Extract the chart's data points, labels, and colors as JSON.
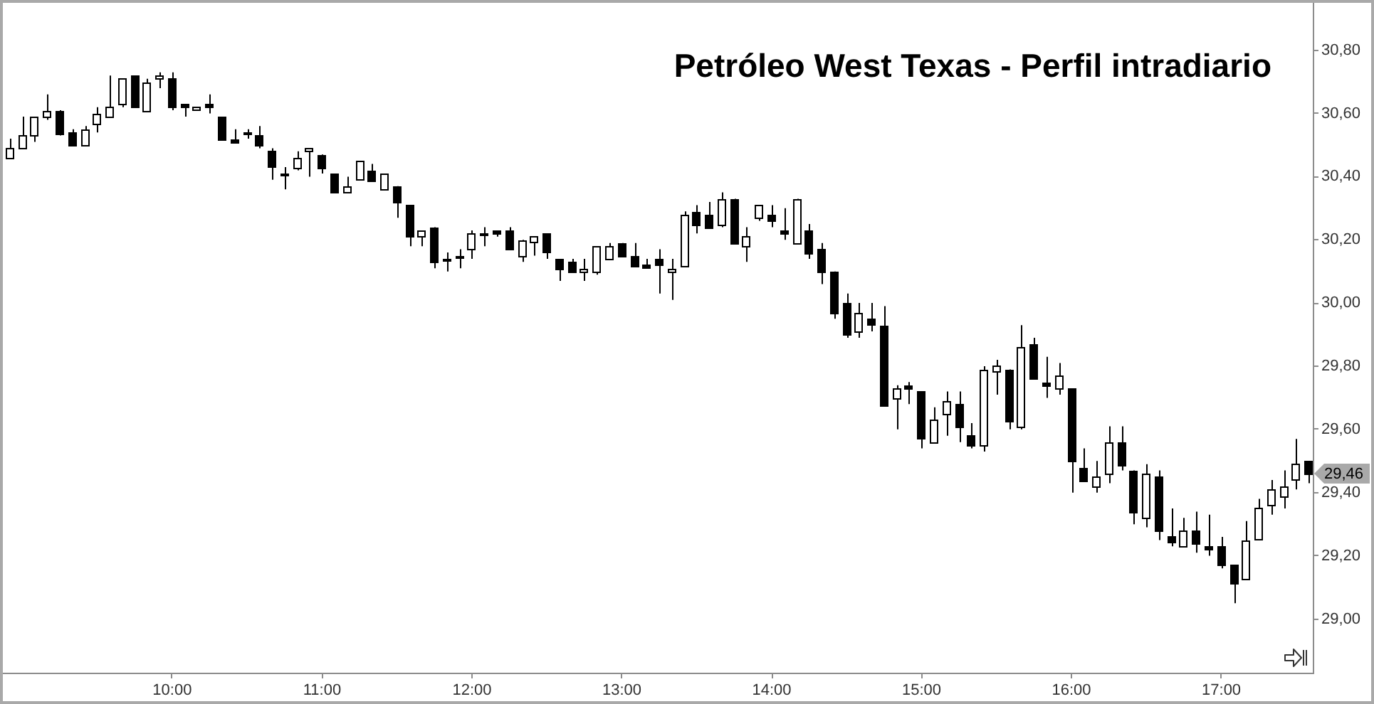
{
  "chart_data": {
    "type": "candlestick",
    "title": "Petróleo West Texas - Perfil intradiario",
    "color": "#000000",
    "x": [
      8.9167,
      9,
      9.0833,
      9.1667,
      9.25,
      9.3333,
      9.4167,
      9.5,
      9.5833,
      9.6667,
      9.75,
      9.8333,
      9.9167,
      10,
      10.0833,
      10.1667,
      10.25,
      10.3333,
      10.4167,
      10.5,
      10.5833,
      10.6667,
      10.75,
      10.8333,
      10.9167,
      11,
      11.0833,
      11.1667,
      11.25,
      11.3333,
      11.4167,
      11.5,
      11.5833,
      11.6667,
      11.75,
      11.8333,
      11.9167,
      12,
      12.0833,
      12.1667,
      12.25,
      12.3333,
      12.4167,
      12.5,
      12.5833,
      12.6667,
      12.75,
      12.8333,
      12.9167,
      13,
      13.0833,
      13.1667,
      13.25,
      13.3333,
      13.4167,
      13.5,
      13.5833,
      13.6667,
      13.75,
      13.8333,
      13.9167,
      14,
      14.0833,
      14.1667,
      14.25,
      14.3333,
      14.4167,
      14.5,
      14.5833,
      14.6667,
      14.75,
      14.8333,
      14.9167,
      15,
      15.0833,
      15.1667,
      15.25,
      15.3333,
      15.4167,
      15.5,
      15.5833,
      15.6667,
      15.75,
      15.8333,
      15.9167,
      16,
      16.0833,
      16.1667,
      16.25,
      16.3333,
      16.4167,
      16.5,
      16.5833,
      16.6667,
      16.75,
      16.8333,
      16.9167,
      17,
      17.0833,
      17.1667,
      17.25,
      17.3333,
      17.4167,
      17.5,
      17.5833
    ],
    "ohlc": [
      [
        30.46,
        30.52,
        30.46,
        30.49
      ],
      [
        30.49,
        30.59,
        30.49,
        30.53
      ],
      [
        30.53,
        30.59,
        30.51,
        30.59
      ],
      [
        30.59,
        30.66,
        30.58,
        30.61
      ],
      [
        30.61,
        30.61,
        30.53,
        30.54
      ],
      [
        30.54,
        30.55,
        30.5,
        30.5
      ],
      [
        30.5,
        30.56,
        30.5,
        30.55
      ],
      [
        30.57,
        30.62,
        30.54,
        30.6
      ],
      [
        30.59,
        30.72,
        30.59,
        30.62
      ],
      [
        30.63,
        30.71,
        30.62,
        30.71
      ],
      [
        30.72,
        30.72,
        30.62,
        30.62
      ],
      [
        30.61,
        30.71,
        30.61,
        30.7
      ],
      [
        30.71,
        30.73,
        30.68,
        30.72
      ],
      [
        30.71,
        30.73,
        30.61,
        30.62
      ],
      [
        30.63,
        30.63,
        30.59,
        30.62
      ],
      [
        30.61,
        30.62,
        30.61,
        30.62
      ],
      [
        30.63,
        30.66,
        30.6,
        30.62
      ],
      [
        30.59,
        30.59,
        30.52,
        30.52
      ],
      [
        30.52,
        30.55,
        30.51,
        30.51
      ],
      [
        30.54,
        30.55,
        30.52,
        30.54
      ],
      [
        30.53,
        30.56,
        30.49,
        30.5
      ],
      [
        30.48,
        30.49,
        30.39,
        30.43
      ],
      [
        30.41,
        30.43,
        30.36,
        30.41
      ],
      [
        30.43,
        30.48,
        30.42,
        30.46
      ],
      [
        30.48,
        30.49,
        30.4,
        30.49
      ],
      [
        30.47,
        30.47,
        30.41,
        30.43
      ],
      [
        30.41,
        30.41,
        30.35,
        30.35
      ],
      [
        30.35,
        30.4,
        30.35,
        30.37
      ],
      [
        30.39,
        30.45,
        30.39,
        30.45
      ],
      [
        30.42,
        30.44,
        30.39,
        30.39
      ],
      [
        30.36,
        30.41,
        30.36,
        30.41
      ],
      [
        30.37,
        30.37,
        30.27,
        30.32
      ],
      [
        30.31,
        30.31,
        30.18,
        30.21
      ],
      [
        30.21,
        30.23,
        30.18,
        30.23
      ],
      [
        30.24,
        30.24,
        30.11,
        30.13
      ],
      [
        30.14,
        30.16,
        30.1,
        30.14
      ],
      [
        30.15,
        30.17,
        30.11,
        30.15
      ],
      [
        30.17,
        30.23,
        30.14,
        30.22
      ],
      [
        30.22,
        30.24,
        30.18,
        30.22
      ],
      [
        30.23,
        30.23,
        30.21,
        30.22
      ],
      [
        30.23,
        30.24,
        30.17,
        30.17
      ],
      [
        30.15,
        30.2,
        30.13,
        30.2
      ],
      [
        30.19,
        30.21,
        30.15,
        30.21
      ],
      [
        30.22,
        30.22,
        30.14,
        30.16
      ],
      [
        30.14,
        30.14,
        30.07,
        30.11
      ],
      [
        30.13,
        30.14,
        30.1,
        30.1
      ],
      [
        30.1,
        30.14,
        30.07,
        30.11
      ],
      [
        30.1,
        30.18,
        30.09,
        30.18
      ],
      [
        30.14,
        30.19,
        30.14,
        30.18
      ],
      [
        30.19,
        30.19,
        30.15,
        30.15
      ],
      [
        30.15,
        30.19,
        30.12,
        30.12
      ],
      [
        30.12,
        30.14,
        30.11,
        30.11
      ],
      [
        30.14,
        30.17,
        30.03,
        30.12
      ],
      [
        30.1,
        30.14,
        30.01,
        30.11
      ],
      [
        30.12,
        30.29,
        30.12,
        30.28
      ],
      [
        30.29,
        30.31,
        30.22,
        30.25
      ],
      [
        30.28,
        30.32,
        30.24,
        30.24
      ],
      [
        30.25,
        30.35,
        30.24,
        30.33
      ],
      [
        30.33,
        30.33,
        30.19,
        30.19
      ],
      [
        30.18,
        30.24,
        30.13,
        30.21
      ],
      [
        30.27,
        30.31,
        30.26,
        30.31
      ],
      [
        30.28,
        30.31,
        30.24,
        30.26
      ],
      [
        30.23,
        30.3,
        30.2,
        30.22
      ],
      [
        30.19,
        30.33,
        30.19,
        30.33
      ],
      [
        30.23,
        30.25,
        30.14,
        30.16
      ],
      [
        30.17,
        30.19,
        30.06,
        30.1
      ],
      [
        30.1,
        30.1,
        29.95,
        29.97
      ],
      [
        30.0,
        30.03,
        29.89,
        29.9
      ],
      [
        29.91,
        30.0,
        29.89,
        29.97
      ],
      [
        29.95,
        30.0,
        29.91,
        29.93
      ],
      [
        29.93,
        29.99,
        29.68,
        29.68
      ],
      [
        29.7,
        29.74,
        29.6,
        29.73
      ],
      [
        29.74,
        29.75,
        29.68,
        29.73
      ],
      [
        29.72,
        29.72,
        29.54,
        29.57
      ],
      [
        29.56,
        29.67,
        29.56,
        29.63
      ],
      [
        29.65,
        29.72,
        29.58,
        29.69
      ],
      [
        29.68,
        29.72,
        29.56,
        29.61
      ],
      [
        29.58,
        29.62,
        29.54,
        29.55
      ],
      [
        29.55,
        29.8,
        29.53,
        29.79
      ],
      [
        29.78,
        29.82,
        29.71,
        29.8
      ],
      [
        29.79,
        29.79,
        29.6,
        29.63
      ],
      [
        29.61,
        29.93,
        29.6,
        29.86
      ],
      [
        29.87,
        29.89,
        29.76,
        29.76
      ],
      [
        29.75,
        29.83,
        29.7,
        29.74
      ],
      [
        29.73,
        29.81,
        29.71,
        29.77
      ],
      [
        29.73,
        29.73,
        29.4,
        29.5
      ],
      [
        29.48,
        29.54,
        29.44,
        29.44
      ],
      [
        29.42,
        29.5,
        29.4,
        29.45
      ],
      [
        29.46,
        29.61,
        29.43,
        29.56
      ],
      [
        29.56,
        29.61,
        29.47,
        29.49
      ],
      [
        29.47,
        29.47,
        29.3,
        29.34
      ],
      [
        29.32,
        29.49,
        29.29,
        29.46
      ],
      [
        29.45,
        29.47,
        29.25,
        29.28
      ],
      [
        29.26,
        29.35,
        29.23,
        29.24
      ],
      [
        29.23,
        29.32,
        29.23,
        29.28
      ],
      [
        29.28,
        29.34,
        29.21,
        29.24
      ],
      [
        29.23,
        29.33,
        29.2,
        29.22
      ],
      [
        29.23,
        29.26,
        29.16,
        29.17
      ],
      [
        29.17,
        29.17,
        29.05,
        29.11
      ],
      [
        29.13,
        29.31,
        29.13,
        29.25
      ],
      [
        29.25,
        29.38,
        29.25,
        29.35
      ],
      [
        29.36,
        29.44,
        29.33,
        29.41
      ],
      [
        29.39,
        29.47,
        29.35,
        29.42
      ],
      [
        29.44,
        29.57,
        29.41,
        29.49
      ],
      [
        29.5,
        29.5,
        29.43,
        29.46
      ]
    ],
    "xlim": [
      8.87,
      17.61
    ],
    "xticks": [
      {
        "value": 10,
        "label": "10:00"
      },
      {
        "value": 11,
        "label": "11:00"
      },
      {
        "value": 12,
        "label": "12:00"
      },
      {
        "value": 13,
        "label": "13:00"
      },
      {
        "value": 14,
        "label": "14:00"
      },
      {
        "value": 15,
        "label": "15:00"
      },
      {
        "value": 16,
        "label": "16:00"
      },
      {
        "value": 17,
        "label": "17:00"
      }
    ],
    "ylim": [
      28.83,
      30.95
    ],
    "yticks": [
      {
        "value": 29.0,
        "label": "29,00"
      },
      {
        "value": 29.2,
        "label": "29,20"
      },
      {
        "value": 29.4,
        "label": "29,40"
      },
      {
        "value": 29.6,
        "label": "29,60"
      },
      {
        "value": 29.8,
        "label": "29,80"
      },
      {
        "value": 30.0,
        "label": "30,00"
      },
      {
        "value": 30.2,
        "label": "30,20"
      },
      {
        "value": 30.4,
        "label": "30,40"
      },
      {
        "value": 30.6,
        "label": "30,60"
      },
      {
        "value": 30.8,
        "label": "30,80"
      }
    ],
    "annotations": [
      {
        "text": "29,46",
        "y": 29.46
      }
    ]
  }
}
